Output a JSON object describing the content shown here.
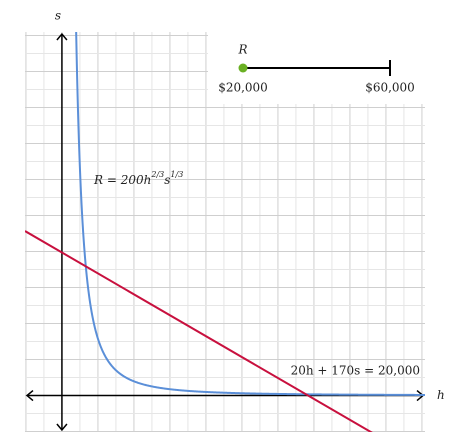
{
  "chart_data": {
    "type": "function-plot",
    "x_label": "h",
    "y_label": "s",
    "xlim": [
      -150,
      1475
    ],
    "ylim": [
      -30,
      299
    ],
    "grid": true,
    "curves": [
      {
        "kind": "power",
        "label_parts": [
          "R = 200h",
          "2/3",
          "s",
          "1/3"
        ],
        "color": "#5b8fd8",
        "coefficient": 200,
        "h_exponent": [
          2,
          3
        ],
        "s_exponent": [
          1,
          3
        ]
      },
      {
        "kind": "linear",
        "label": "20h + 170s = 20,000",
        "color": "#c8103e",
        "h_coefficient": 20,
        "s_coefficient": 170,
        "constant": 20000
      }
    ]
  },
  "slider": {
    "name": "R",
    "min": 20000,
    "max": 60000,
    "value": 20000,
    "min_label": "$20,000",
    "max_label": "$60,000",
    "color": "#6ab023"
  }
}
